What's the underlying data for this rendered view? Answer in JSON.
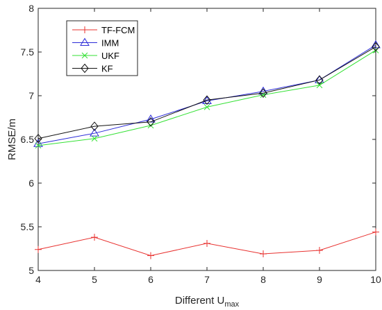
{
  "chart_data": {
    "type": "line",
    "x": [
      4,
      5,
      6,
      7,
      8,
      9,
      10
    ],
    "xlabel": "Different U",
    "xlabel_subscript": "max",
    "ylabel": "RMSE/m",
    "xlim": [
      4,
      10
    ],
    "ylim": [
      5,
      8
    ],
    "xticks": [
      "4",
      "5",
      "6",
      "7",
      "8",
      "9",
      "10"
    ],
    "yticks": [
      "5",
      "5.5",
      "6",
      "6.5",
      "7",
      "7.5",
      "8"
    ],
    "grid": false,
    "legend_position": "top-left",
    "series": [
      {
        "name": "TF-FCM",
        "color": "#e8302e",
        "marker": "plus",
        "values": [
          5.24,
          5.38,
          5.17,
          5.31,
          5.19,
          5.23,
          5.44
        ]
      },
      {
        "name": "IMM",
        "color": "#2a2ad8",
        "marker": "triangle",
        "values": [
          6.45,
          6.57,
          6.73,
          6.94,
          7.05,
          7.18,
          7.58
        ]
      },
      {
        "name": "UKF",
        "color": "#33e133",
        "marker": "x",
        "values": [
          6.43,
          6.51,
          6.66,
          6.87,
          7.01,
          7.12,
          7.52
        ]
      },
      {
        "name": "KF",
        "color": "#111111",
        "marker": "diamond",
        "values": [
          6.51,
          6.65,
          6.7,
          6.95,
          7.03,
          7.18,
          7.56
        ]
      }
    ]
  }
}
